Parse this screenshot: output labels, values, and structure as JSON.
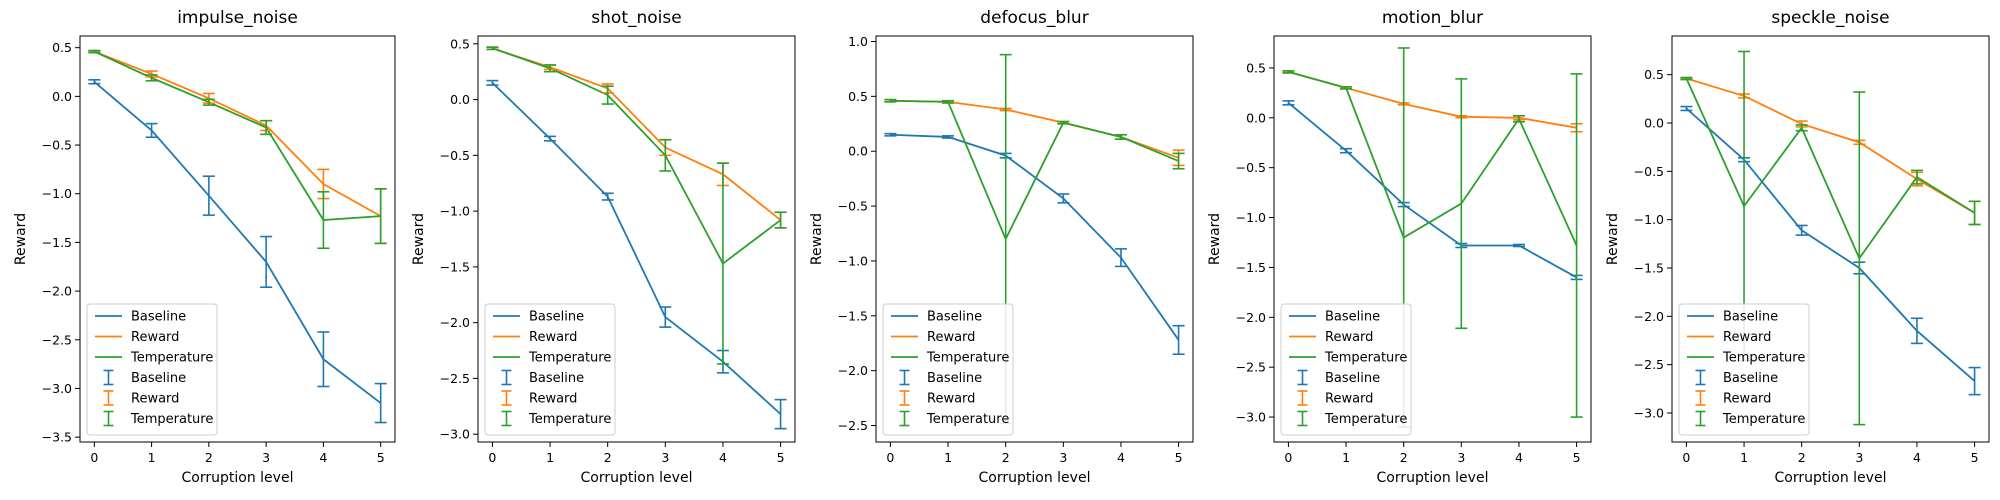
{
  "chart_data": [
    {
      "type": "line",
      "title": "impulse_noise",
      "xlabel": "Corruption level",
      "ylabel": "Reward",
      "x": [
        0,
        1,
        2,
        3,
        4,
        5
      ],
      "xticks": [
        "0",
        "1",
        "2",
        "3",
        "4",
        "5"
      ],
      "ylim": [
        -3.55,
        0.62
      ],
      "yticks": [
        0.5,
        0.0,
        -0.5,
        -1.0,
        -1.5,
        -2.0,
        -2.5,
        -3.0,
        -3.5
      ],
      "ytick_labels": [
        "0.5",
        "0.0",
        "−0.5",
        "−1.0",
        "−1.5",
        "−2.0",
        "−2.5",
        "−3.0",
        "−3.5"
      ],
      "legend_position": "lower left",
      "series": [
        {
          "name": "Baseline",
          "color": "#1f77b4",
          "values": [
            0.15,
            -0.35,
            -1.02,
            -1.7,
            -2.7,
            -3.15
          ],
          "errors": [
            0.02,
            0.07,
            0.2,
            0.26,
            0.28,
            0.2
          ]
        },
        {
          "name": "Reward",
          "color": "#ff7f0e",
          "values": [
            0.46,
            0.23,
            -0.02,
            -0.3,
            -0.9,
            -1.23
          ],
          "errors": [
            0.01,
            0.03,
            0.05,
            0.05,
            0.15,
            0.28
          ]
        },
        {
          "name": "Temperature",
          "color": "#2ca02c",
          "values": [
            0.46,
            0.19,
            -0.06,
            -0.32,
            -1.27,
            -1.23
          ],
          "errors": [
            0.01,
            0.03,
            0.03,
            0.07,
            0.29,
            0.28
          ]
        }
      ]
    },
    {
      "type": "line",
      "title": "shot_noise",
      "xlabel": "Corruption level",
      "ylabel": "Reward",
      "x": [
        0,
        1,
        2,
        3,
        4,
        5
      ],
      "xticks": [
        "0",
        "1",
        "2",
        "3",
        "4",
        "5"
      ],
      "ylim": [
        -3.07,
        0.57
      ],
      "yticks": [
        0.5,
        0.0,
        -0.5,
        -1.0,
        -1.5,
        -2.0,
        -2.5,
        -3.0
      ],
      "ytick_labels": [
        "0.5",
        "0.0",
        "−0.5",
        "−1.0",
        "−1.5",
        "−2.0",
        "−2.5",
        "−3.0"
      ],
      "legend_position": "lower left",
      "series": [
        {
          "name": "Baseline",
          "color": "#1f77b4",
          "values": [
            0.15,
            -0.35,
            -0.87,
            -1.95,
            -2.35,
            -2.82
          ],
          "errors": [
            0.02,
            0.02,
            0.03,
            0.09,
            0.1,
            0.13
          ]
        },
        {
          "name": "Reward",
          "color": "#ff7f0e",
          "values": [
            0.46,
            0.29,
            0.1,
            -0.43,
            -0.67,
            -1.08
          ],
          "errors": [
            0.01,
            0.02,
            0.04,
            0.07,
            0.1,
            0.07
          ]
        },
        {
          "name": "Temperature",
          "color": "#2ca02c",
          "values": [
            0.46,
            0.28,
            0.04,
            -0.5,
            -1.47,
            -1.08
          ],
          "errors": [
            0.01,
            0.03,
            0.08,
            0.14,
            0.9,
            0.07
          ]
        }
      ]
    },
    {
      "type": "line",
      "title": "defocus_blur",
      "xlabel": "Corruption level",
      "ylabel": "Reward",
      "x": [
        0,
        1,
        2,
        3,
        4,
        5
      ],
      "xticks": [
        "0",
        "1",
        "2",
        "3",
        "4",
        "5"
      ],
      "ylim": [
        -2.65,
        1.05
      ],
      "yticks": [
        1.0,
        0.5,
        0.0,
        -0.5,
        -1.0,
        -1.5,
        -2.0,
        -2.5
      ],
      "ytick_labels": [
        "1.0",
        "0.5",
        "0.0",
        "−0.5",
        "−1.0",
        "−1.5",
        "−2.0",
        "−2.5"
      ],
      "legend_position": "lower left",
      "series": [
        {
          "name": "Baseline",
          "color": "#1f77b4",
          "values": [
            0.15,
            0.13,
            -0.04,
            -0.43,
            -0.97,
            -1.72
          ],
          "errors": [
            0.01,
            0.01,
            0.02,
            0.04,
            0.08,
            0.13
          ]
        },
        {
          "name": "Reward",
          "color": "#ff7f0e",
          "values": [
            0.46,
            0.45,
            0.38,
            0.26,
            0.13,
            -0.06
          ],
          "errors": [
            0.01,
            0.01,
            0.01,
            0.01,
            0.02,
            0.07
          ]
        },
        {
          "name": "Temperature",
          "color": "#2ca02c",
          "values": [
            0.46,
            0.45,
            -0.8,
            0.26,
            0.13,
            -0.09
          ],
          "errors": [
            0.01,
            0.01,
            1.68,
            0.01,
            0.02,
            0.07
          ]
        }
      ]
    },
    {
      "type": "line",
      "title": "motion_blur",
      "xlabel": "Corruption level",
      "ylabel": "Reward",
      "x": [
        0,
        1,
        2,
        3,
        4,
        5
      ],
      "xticks": [
        "0",
        "1",
        "2",
        "3",
        "4",
        "5"
      ],
      "ylim": [
        -3.25,
        0.82
      ],
      "yticks": [
        0.5,
        0.0,
        -0.5,
        -1.0,
        -1.5,
        -2.0,
        -2.5,
        -3.0
      ],
      "ytick_labels": [
        "0.5",
        "0.0",
        "−0.5",
        "−1.0",
        "−1.5",
        "−2.0",
        "−2.5",
        "−3.0"
      ],
      "legend_position": "lower left",
      "series": [
        {
          "name": "Baseline",
          "color": "#1f77b4",
          "values": [
            0.15,
            -0.33,
            -0.87,
            -1.28,
            -1.28,
            -1.6
          ],
          "errors": [
            0.02,
            0.02,
            0.02,
            0.02,
            0.01,
            0.02
          ]
        },
        {
          "name": "Reward",
          "color": "#ff7f0e",
          "values": [
            0.46,
            0.3,
            0.14,
            0.01,
            0.0,
            -0.1
          ],
          "errors": [
            0.01,
            0.01,
            0.01,
            0.01,
            0.02,
            0.04
          ]
        },
        {
          "name": "Temperature",
          "color": "#2ca02c",
          "values": [
            0.46,
            0.3,
            -1.2,
            -0.86,
            -0.01,
            -1.28
          ],
          "errors": [
            0.01,
            0.01,
            1.9,
            1.25,
            0.03,
            1.72
          ]
        }
      ]
    },
    {
      "type": "line",
      "title": "speckle_noise",
      "xlabel": "Corruption level",
      "ylabel": "Reward",
      "x": [
        0,
        1,
        2,
        3,
        4,
        5
      ],
      "xticks": [
        "0",
        "1",
        "2",
        "3",
        "4",
        "5"
      ],
      "ylim": [
        -3.3,
        0.9
      ],
      "yticks": [
        0.5,
        0.0,
        -0.5,
        -1.0,
        -1.5,
        -2.0,
        -2.5,
        -3.0
      ],
      "ytick_labels": [
        "0.5",
        "0.0",
        "−0.5",
        "−1.0",
        "−1.5",
        "−2.0",
        "−2.5",
        "−3.0"
      ],
      "legend_position": "lower left",
      "series": [
        {
          "name": "Baseline",
          "color": "#1f77b4",
          "values": [
            0.15,
            -0.38,
            -1.11,
            -1.5,
            -2.15,
            -2.67
          ],
          "errors": [
            0.02,
            0.02,
            0.05,
            0.06,
            0.13,
            0.14
          ]
        },
        {
          "name": "Reward",
          "color": "#ff7f0e",
          "values": [
            0.46,
            0.28,
            -0.01,
            -0.2,
            -0.58,
            -0.93
          ],
          "errors": [
            0.01,
            0.02,
            0.03,
            0.02,
            0.07,
            0.12
          ]
        },
        {
          "name": "Temperature",
          "color": "#2ca02c",
          "values": [
            0.46,
            -0.86,
            -0.05,
            -1.4,
            -0.56,
            -0.93
          ],
          "errors": [
            0.01,
            1.6,
            0.03,
            1.72,
            0.07,
            0.12
          ]
        }
      ]
    }
  ]
}
